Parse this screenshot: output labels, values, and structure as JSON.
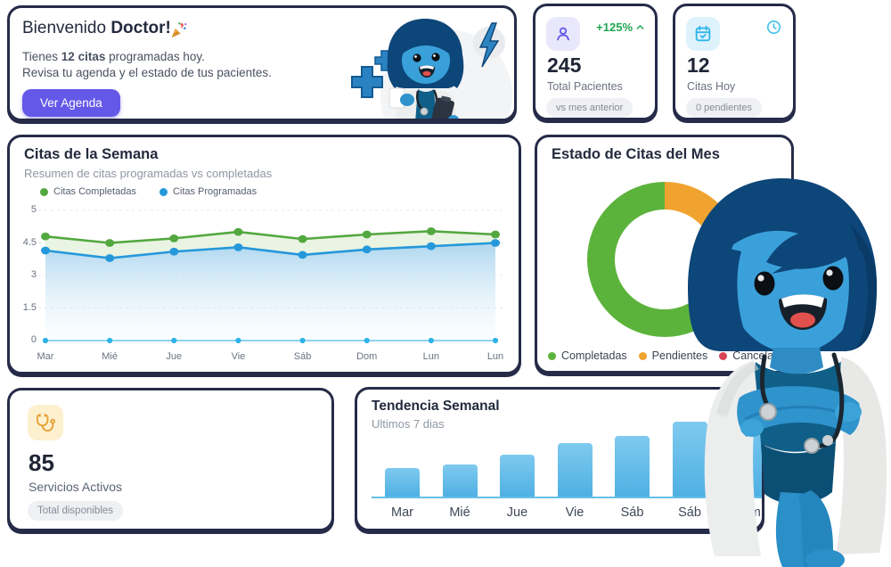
{
  "welcome": {
    "title_regular": "Bienvenido",
    "title_bold": "Doctor!",
    "title_icon": "party-popper",
    "line1_prefix": "Tienes",
    "line1_bold": "12 citas",
    "line1_suffix": "programadas hoy.",
    "line2": "Revisa tu agenda y el estado de tus pacientes.",
    "button_label": "Ver Agenda"
  },
  "stats": {
    "total_pacientes": {
      "icon": "user-icon",
      "trend": "+125%",
      "trend_icon": "chevron-up-icon",
      "value": "245",
      "label": "Total Pacientes",
      "badge": "vs mes anterior"
    },
    "citas_hoy": {
      "icon": "calendar-check-icon",
      "corner_icon": "clock-icon",
      "value": "12",
      "label": "Citas Hoy",
      "badge": "0 pendientes"
    },
    "servicios_activos": {
      "icon": "stethoscope-icon",
      "value": "85",
      "label": "Servicios Activos",
      "badge": "Total disponibles"
    }
  },
  "chart_data": [
    {
      "type": "line",
      "title": "Citas de la Semana",
      "subtitle": "Resumen de citas programadas vs completadas",
      "x": [
        "Mar",
        "Mié",
        "Jue",
        "Vie",
        "Sáb",
        "Dom",
        "Lun",
        "Lun"
      ],
      "series": [
        {
          "name": "Citas Completadas",
          "color": "#53a83f",
          "fill": "#e8f3e0",
          "values": [
            4.6,
            4.5,
            4.57,
            4.67,
            4.56,
            4.63,
            4.68,
            4.63
          ]
        },
        {
          "name": "Citas Programadas",
          "color": "#2598da",
          "fill_top": "#a5d2ed",
          "fill_bottom": "#f2fafe",
          "values": [
            4.15,
            3.8,
            4.1,
            4.3,
            3.95,
            4.2,
            4.35,
            4.5
          ]
        }
      ],
      "zero_marker_color": "#2fb2e8",
      "yticks": [
        0,
        1.5,
        3,
        4.5,
        5
      ],
      "ylim": [
        0,
        5
      ],
      "grid": "dashed-horizontal",
      "legend_position": "top-left"
    },
    {
      "type": "pie",
      "donut": true,
      "title": "Estado de Citas del Mes",
      "labels": [
        "Completadas",
        "Pendientes",
        "Canceladas"
      ],
      "values": [
        76,
        15,
        9
      ],
      "colors": [
        "#5cb33c",
        "#f0a32e",
        "#d64456"
      ],
      "draw_order_from_top": [
        1,
        2,
        0
      ],
      "legend_position": "bottom"
    },
    {
      "type": "bar",
      "title": "Tendencia Semanal",
      "subtitle": "Ultimos 7 dias",
      "categories": [
        "Mar",
        "Mié",
        "Jue",
        "Vie",
        "Sáb",
        "Sáb",
        "Dom"
      ],
      "values": [
        32,
        36,
        47,
        59,
        67,
        83,
        95
      ],
      "ylim": [
        0,
        100
      ],
      "bar_color_top": "#7fcaef",
      "bar_color_bottom": "#4fb0e3",
      "baseline_color": "#66bfe9"
    }
  ],
  "colors": {
    "card_border": "#262b49",
    "accent_purple": "#6458e8",
    "trend_green": "#1fa650",
    "cyan": "#2fb5ea",
    "amber": "#e8a43c",
    "badge_bg": "#eef0f3",
    "text_primary": "#1f2534",
    "text_muted": "#8f97a3"
  }
}
